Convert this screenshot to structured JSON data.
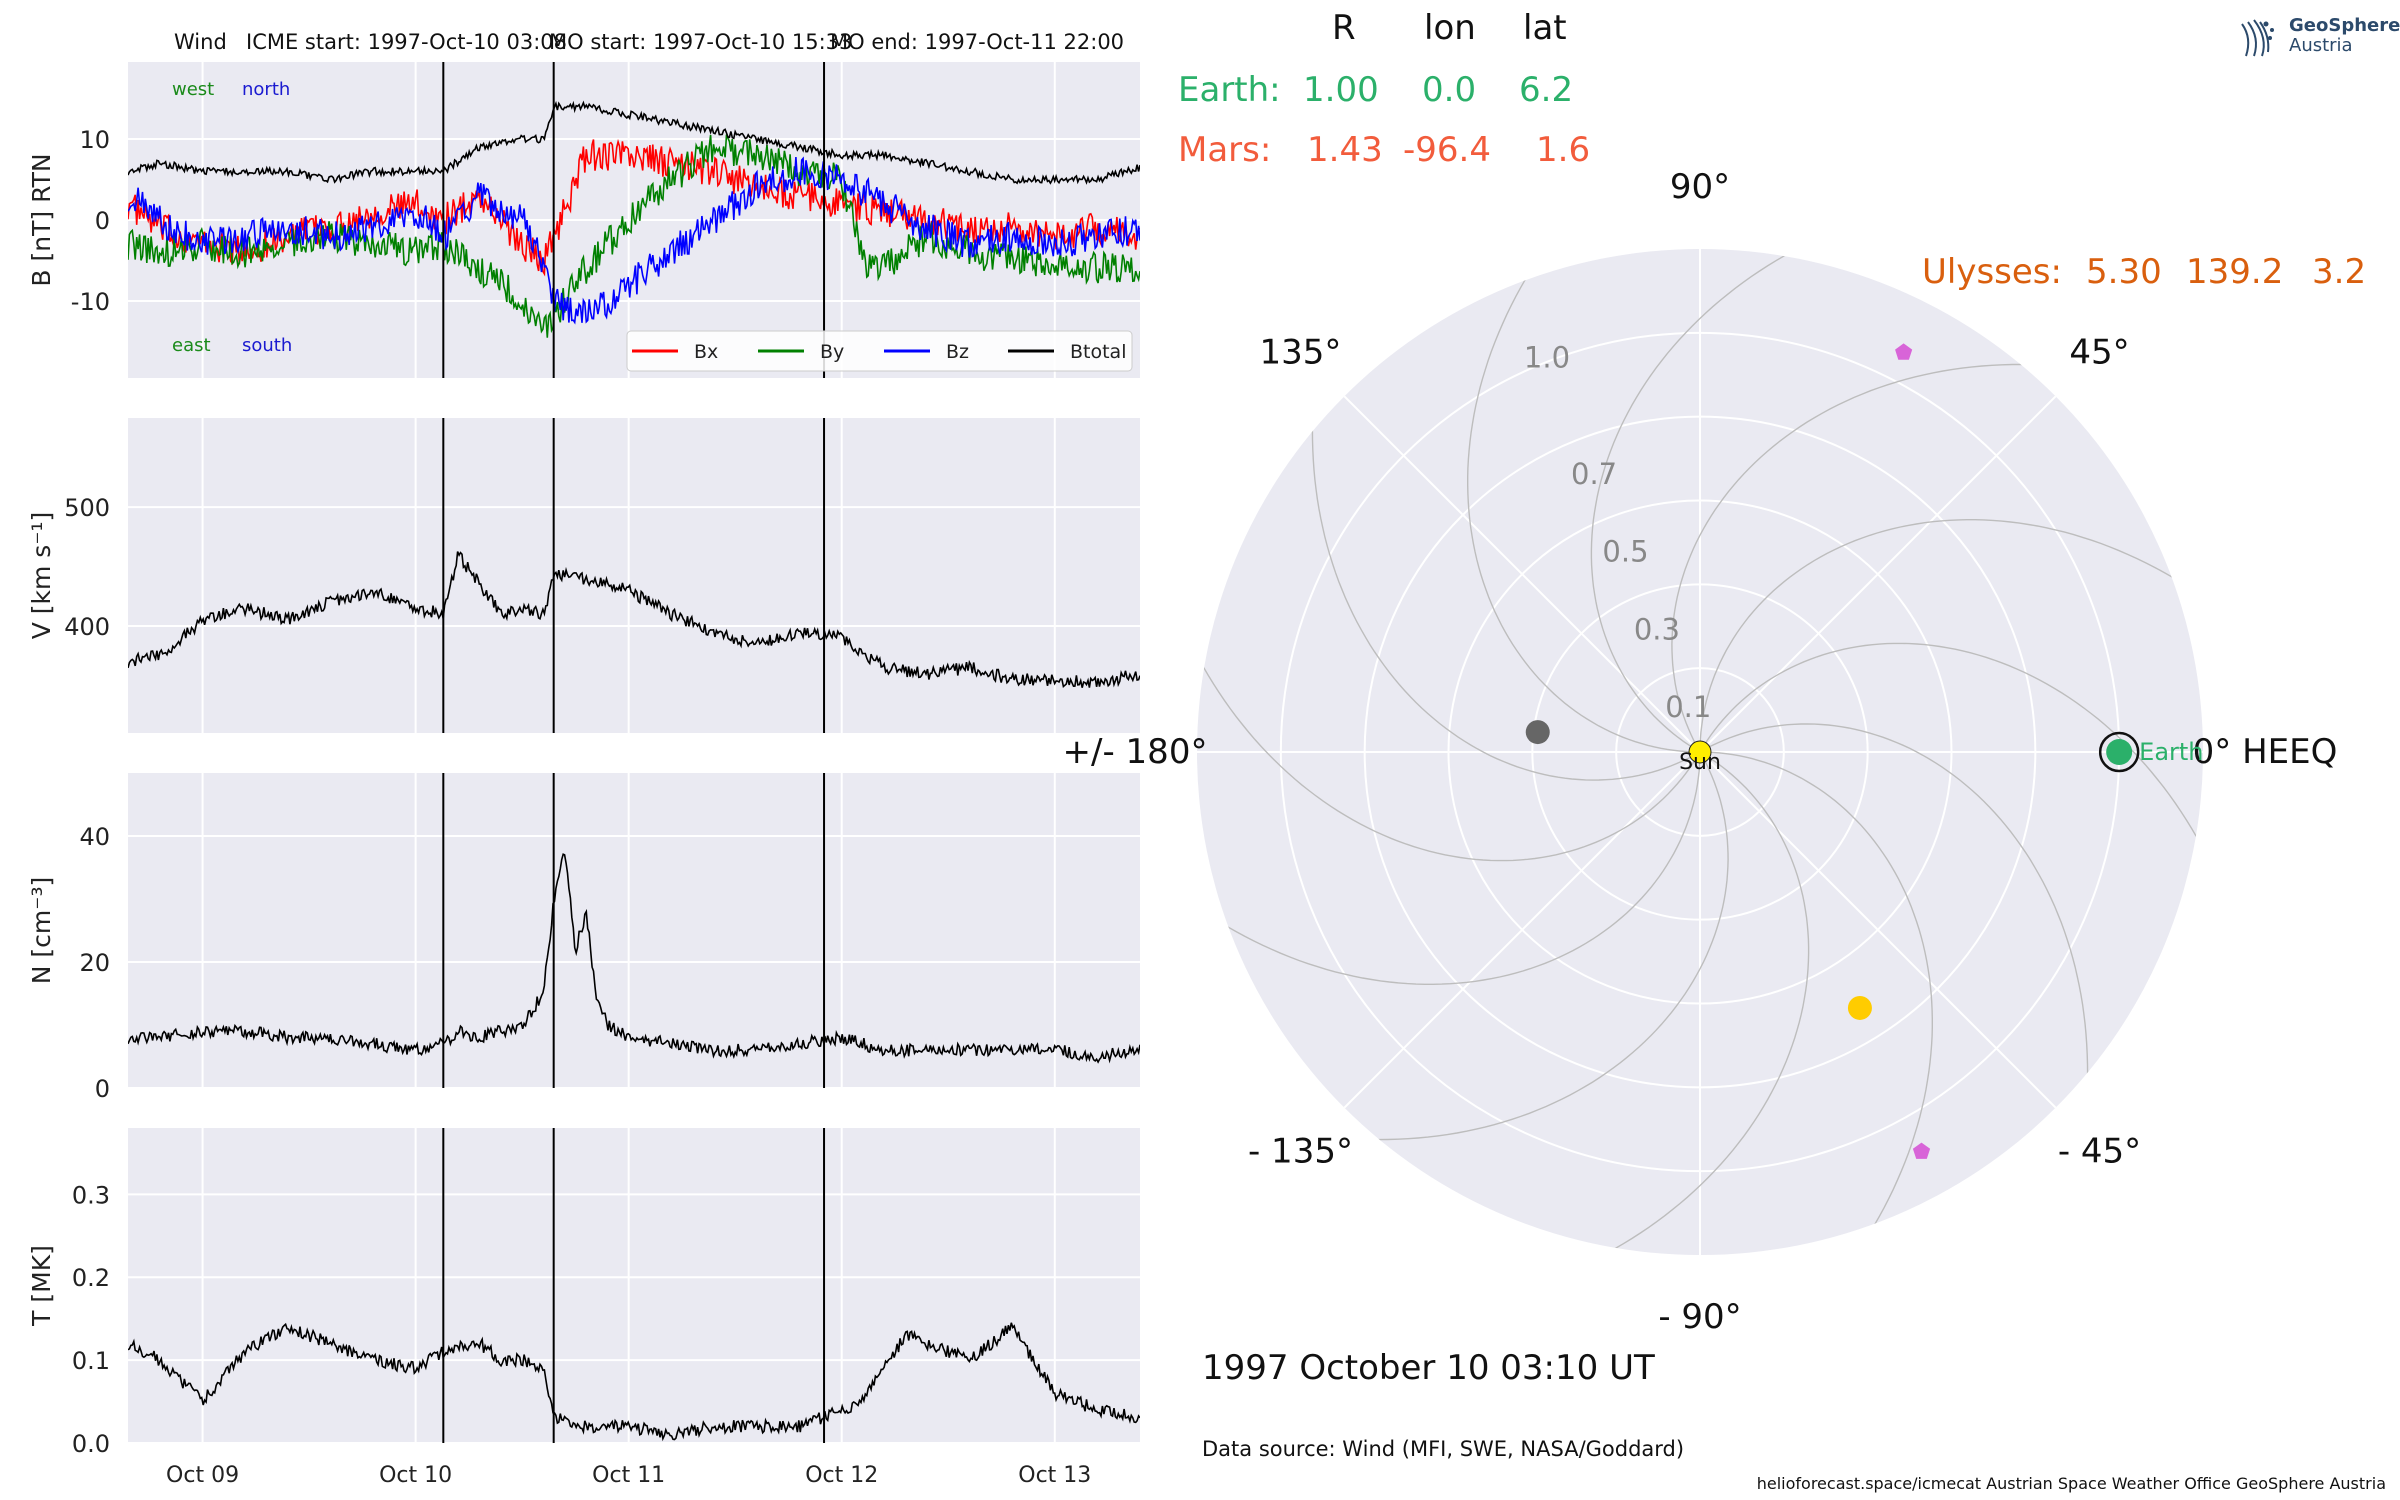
{
  "title": {
    "spacecraft": "Wind",
    "icme_start": "ICME start: 1997-Oct-10 03:08",
    "mo_start": "MO start: 1997-Oct-10 15:33",
    "mo_end": "MO end: 1997-Oct-11 22:00"
  },
  "positions": {
    "header": {
      "r": "R",
      "lon": "lon",
      "lat": "lat"
    },
    "rows": [
      {
        "name": "Earth:",
        "r": "1.00",
        "lon": "0.0",
        "lat": "6.2",
        "color": "#2bb06a"
      },
      {
        "name": "Mars:",
        "r": "1.43",
        "lon": "-96.4",
        "lat": "1.6",
        "color": "#f25c3c"
      },
      {
        "name": "Ulysses:",
        "r": "5.30",
        "lon": "139.2",
        "lat": "3.2",
        "color": "#d95f0e"
      }
    ]
  },
  "logo": {
    "line1": "GeoSphere",
    "line2": "Austria"
  },
  "footer": {
    "date": "1997 October 10  03:10 UT",
    "source": "Data source: Wind (MFI, SWE, NASA/Goddard)",
    "credits": "helioforecast.space/icmecat   Austrian Space Weather Office   GeoSphere Austria"
  },
  "chart_data": [
    {
      "type": "line",
      "panel": "magnetic_field",
      "ylabel": "B [nT] RTN",
      "ylim": [
        -19.5,
        19.5
      ],
      "yticks": [
        -10,
        0,
        10
      ],
      "xlim": [
        8.65,
        13.4
      ],
      "xticks": [
        {
          "value": 9,
          "label": "Oct 09"
        },
        {
          "value": 10,
          "label": "Oct 10"
        },
        {
          "value": 11,
          "label": "Oct 11"
        },
        {
          "value": 12,
          "label": "Oct 12"
        },
        {
          "value": 13,
          "label": "Oct 13"
        }
      ],
      "annotations": [
        {
          "text": "west",
          "color": "#1a8a1a"
        },
        {
          "text": "north",
          "color": "#1a1ad0"
        },
        {
          "text": "east",
          "color": "#1a8a1a"
        },
        {
          "text": "south",
          "color": "#1a1ad0"
        }
      ],
      "legend": "bottom-right",
      "series": [
        {
          "name": "Bx",
          "color": "#ff0000",
          "x": [
            8.65,
            8.8,
            9.0,
            9.2,
            9.4,
            9.6,
            9.8,
            10.0,
            10.13,
            10.3,
            10.5,
            10.6,
            10.65,
            10.8,
            11.0,
            11.2,
            11.4,
            11.6,
            11.8,
            12.0,
            12.2,
            12.4,
            12.6,
            12.8,
            13.0,
            13.2,
            13.4
          ],
          "y": [
            2,
            -1,
            -3,
            -4,
            -2,
            -1,
            1,
            2,
            0,
            3,
            -3,
            -5,
            -2,
            8,
            8,
            7,
            6,
            4,
            3,
            2,
            1,
            0,
            -1,
            -1,
            -2,
            -1,
            -2
          ]
        },
        {
          "name": "By",
          "color": "#008000",
          "x": [
            8.65,
            8.8,
            9.0,
            9.2,
            9.4,
            9.6,
            9.8,
            10.0,
            10.13,
            10.3,
            10.5,
            10.6,
            10.65,
            10.8,
            11.0,
            11.2,
            11.4,
            11.6,
            11.8,
            12.0,
            12.1,
            12.2,
            12.4,
            12.6,
            12.8,
            13.0,
            13.2,
            13.4
          ],
          "y": [
            -3,
            -4,
            -3,
            -4,
            -3,
            -2,
            -3,
            -4,
            -3,
            -6,
            -10,
            -13,
            -12,
            -6,
            0,
            5,
            9,
            8,
            6,
            5,
            -5,
            -6,
            -2,
            -4,
            -5,
            -5,
            -6,
            -6
          ]
        },
        {
          "name": "Bz",
          "color": "#0000ff",
          "x": [
            8.65,
            8.8,
            9.0,
            9.2,
            9.4,
            9.6,
            9.8,
            10.0,
            10.13,
            10.3,
            10.5,
            10.6,
            10.65,
            10.8,
            11.0,
            11.2,
            11.4,
            11.6,
            11.8,
            12.0,
            12.2,
            12.4,
            12.6,
            12.8,
            13.0,
            13.2,
            13.4
          ],
          "y": [
            3,
            0,
            -3,
            -2,
            -1,
            -2,
            -1,
            1,
            -2,
            3,
            0,
            -5,
            -10,
            -12,
            -8,
            -4,
            0,
            4,
            6,
            5,
            2,
            -1,
            -3,
            -2,
            -3,
            -2,
            -1
          ]
        },
        {
          "name": "Btotal",
          "color": "#000000",
          "x": [
            8.65,
            8.8,
            9.0,
            9.2,
            9.4,
            9.6,
            9.8,
            10.0,
            10.13,
            10.3,
            10.5,
            10.6,
            10.65,
            10.8,
            11.0,
            11.2,
            11.4,
            11.6,
            11.8,
            12.0,
            12.2,
            12.4,
            12.6,
            12.8,
            13.0,
            13.2,
            13.4
          ],
          "y": [
            6,
            7,
            6,
            6,
            6,
            5,
            6,
            6,
            6,
            9,
            10,
            10,
            14,
            14,
            13,
            12,
            11,
            10,
            9,
            8,
            8,
            7,
            6,
            5,
            5,
            5,
            6.5
          ]
        }
      ]
    },
    {
      "type": "line",
      "panel": "speed",
      "ylabel": "V [km s⁻¹]",
      "ylim": [
        310,
        575
      ],
      "yticks": [
        400,
        500
      ],
      "xlim": [
        8.65,
        13.4
      ],
      "series": [
        {
          "name": "V",
          "color": "#000000",
          "x": [
            8.65,
            8.8,
            9.0,
            9.2,
            9.4,
            9.6,
            9.8,
            10.0,
            10.13,
            10.2,
            10.3,
            10.4,
            10.5,
            10.6,
            10.65,
            10.8,
            11.0,
            11.2,
            11.4,
            11.6,
            11.8,
            12.0,
            12.2,
            12.4,
            12.6,
            12.8,
            13.0,
            13.2,
            13.4
          ],
          "y": [
            370,
            375,
            405,
            415,
            405,
            420,
            430,
            415,
            410,
            460,
            435,
            410,
            415,
            410,
            445,
            440,
            430,
            410,
            395,
            385,
            395,
            390,
            365,
            360,
            365,
            355,
            355,
            352,
            360
          ]
        }
      ]
    },
    {
      "type": "line",
      "panel": "density",
      "ylabel": "N [cm⁻³]",
      "ylim": [
        0,
        50
      ],
      "yticks": [
        0,
        20,
        40
      ],
      "xlim": [
        8.65,
        13.4
      ],
      "series": [
        {
          "name": "N",
          "color": "#000000",
          "x": [
            8.65,
            8.8,
            9.0,
            9.2,
            9.4,
            9.6,
            9.8,
            10.0,
            10.13,
            10.2,
            10.3,
            10.4,
            10.5,
            10.6,
            10.65,
            10.7,
            10.75,
            10.8,
            10.85,
            10.9,
            11.0,
            11.2,
            11.4,
            11.6,
            11.8,
            12.0,
            12.2,
            12.4,
            12.6,
            12.8,
            13.0,
            13.2,
            13.4
          ],
          "y": [
            8,
            8,
            9,
            9,
            8,
            8,
            7,
            6,
            7,
            9,
            8,
            9,
            10,
            15,
            30,
            38,
            22,
            28,
            14,
            10,
            8,
            7,
            6,
            6,
            7,
            8,
            6,
            6,
            6,
            6,
            6,
            5,
            6
          ]
        }
      ]
    },
    {
      "type": "line",
      "panel": "temperature",
      "ylabel": "T [MK]",
      "ylim": [
        0,
        0.38
      ],
      "yticks": [
        0.0,
        0.1,
        0.2,
        0.3
      ],
      "xlim": [
        8.65,
        13.4
      ],
      "series": [
        {
          "name": "T",
          "color": "#000000",
          "x": [
            8.65,
            8.8,
            9.0,
            9.2,
            9.4,
            9.6,
            9.8,
            10.0,
            10.13,
            10.3,
            10.4,
            10.5,
            10.6,
            10.65,
            10.8,
            11.0,
            11.2,
            11.4,
            11.6,
            11.8,
            12.0,
            12.1,
            12.2,
            12.3,
            12.4,
            12.6,
            12.8,
            12.9,
            13.0,
            13.2,
            13.4
          ],
          "y": [
            0.12,
            0.1,
            0.05,
            0.11,
            0.14,
            0.12,
            0.1,
            0.09,
            0.11,
            0.12,
            0.1,
            0.1,
            0.09,
            0.03,
            0.02,
            0.02,
            0.01,
            0.02,
            0.02,
            0.02,
            0.04,
            0.05,
            0.09,
            0.13,
            0.12,
            0.1,
            0.14,
            0.1,
            0.06,
            0.04,
            0.03
          ]
        }
      ]
    },
    {
      "type": "polar",
      "panel": "positions",
      "angle_ticks": [
        {
          "deg": 0,
          "label": "0° HEEQ"
        },
        {
          "deg": 45,
          "label": "45°"
        },
        {
          "deg": 90,
          "label": "90°"
        },
        {
          "deg": 135,
          "label": "135°"
        },
        {
          "deg": 180,
          "label": "+/- 180°"
        },
        {
          "deg": -135,
          "label": "- 135°"
        },
        {
          "deg": -90,
          "label": "- 90°"
        },
        {
          "deg": -45,
          "label": "- 45°"
        }
      ],
      "radial_ticks": [
        {
          "r": 0.1,
          "label": "0.1"
        },
        {
          "r": 0.3,
          "label": "0.3"
        },
        {
          "r": 0.5,
          "label": "0.5"
        },
        {
          "r": 0.7,
          "label": "0.7"
        },
        {
          "r": 1.0,
          "label": "1.0"
        }
      ],
      "rmax": 1.2,
      "objects": [
        {
          "name": "Sun",
          "label": "Sun",
          "lon": 0,
          "r": 0,
          "color": "#ffee00",
          "marker": "circle"
        },
        {
          "name": "Earth",
          "label": "Earth",
          "lon": 0,
          "r": 1.0,
          "color": "#2bb06a",
          "marker": "circle-ring"
        },
        {
          "name": "Mercury",
          "lon": 173,
          "r": 0.39,
          "color": "#666666",
          "marker": "circle"
        },
        {
          "name": "Venus",
          "lon": -58,
          "r": 0.72,
          "color": "#ffcc00",
          "marker": "circle"
        },
        {
          "name": "probe-1",
          "lon": 63,
          "r": 1.07,
          "color": "#d864d8",
          "marker": "pentagon"
        },
        {
          "name": "probe-2",
          "lon": -61,
          "r": 1.09,
          "color": "#d864d8",
          "marker": "pentagon"
        }
      ]
    }
  ]
}
